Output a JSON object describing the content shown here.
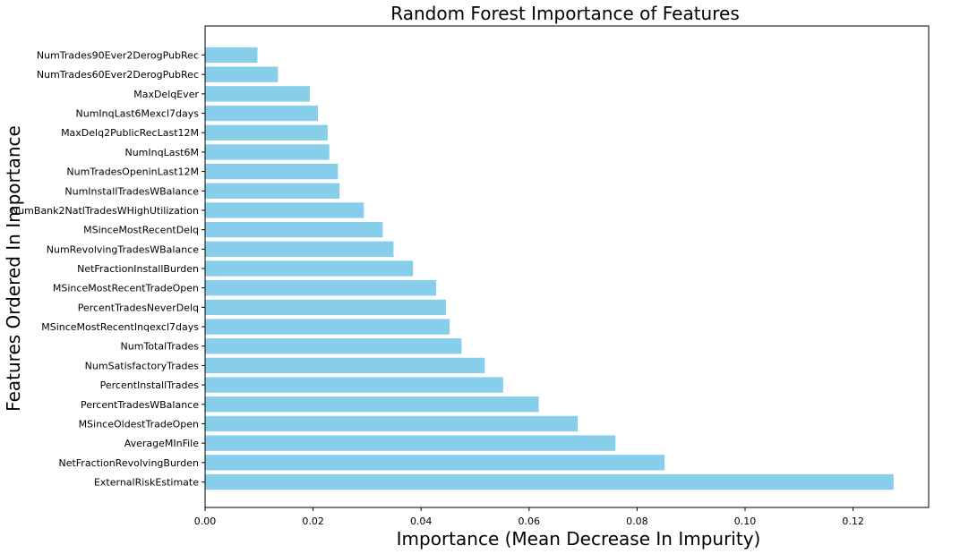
{
  "chart_data": {
    "type": "bar",
    "orientation": "horizontal",
    "title": "Random Forest Importance of Features",
    "xlabel": "Importance (Mean Decrease In Impurity)",
    "ylabel": "Features Ordered In Importance",
    "xlim": [
      0,
      0.134
    ],
    "xticks": [
      0.0,
      0.02,
      0.04,
      0.06,
      0.08,
      0.1,
      0.12
    ],
    "xtick_labels": [
      "0.00",
      "0.02",
      "0.04",
      "0.06",
      "0.08",
      "0.10",
      "0.12"
    ],
    "grid": false,
    "bar_color": "#87CEEB",
    "categories": [
      "ExternalRiskEstimate",
      "NetFractionRevolvingBurden",
      "AverageMInFile",
      "MSinceOldestTradeOpen",
      "PercentTradesWBalance",
      "PercentInstallTrades",
      "NumSatisfactoryTrades",
      "NumTotalTrades",
      "MSinceMostRecentInqexcl7days",
      "PercentTradesNeverDelq",
      "MSinceMostRecentTradeOpen",
      "NetFractionInstallBurden",
      "NumRevolvingTradesWBalance",
      "MSinceMostRecentDelq",
      "NumBank2NatlTradesWHighUtilization",
      "NumInstallTradesWBalance",
      "NumTradesOpeninLast12M",
      "NumInqLast6M",
      "MaxDelq2PublicRecLast12M",
      "NumInqLast6Mexcl7days",
      "MaxDelqEver",
      "NumTrades60Ever2DerogPubRec",
      "NumTrades90Ever2DerogPubRec"
    ],
    "values": [
      0.1275,
      0.0851,
      0.076,
      0.069,
      0.0618,
      0.0552,
      0.0518,
      0.0475,
      0.0453,
      0.0446,
      0.0428,
      0.0385,
      0.0349,
      0.0329,
      0.0294,
      0.0249,
      0.0246,
      0.023,
      0.0227,
      0.0209,
      0.0194,
      0.0135,
      0.0097
    ]
  }
}
